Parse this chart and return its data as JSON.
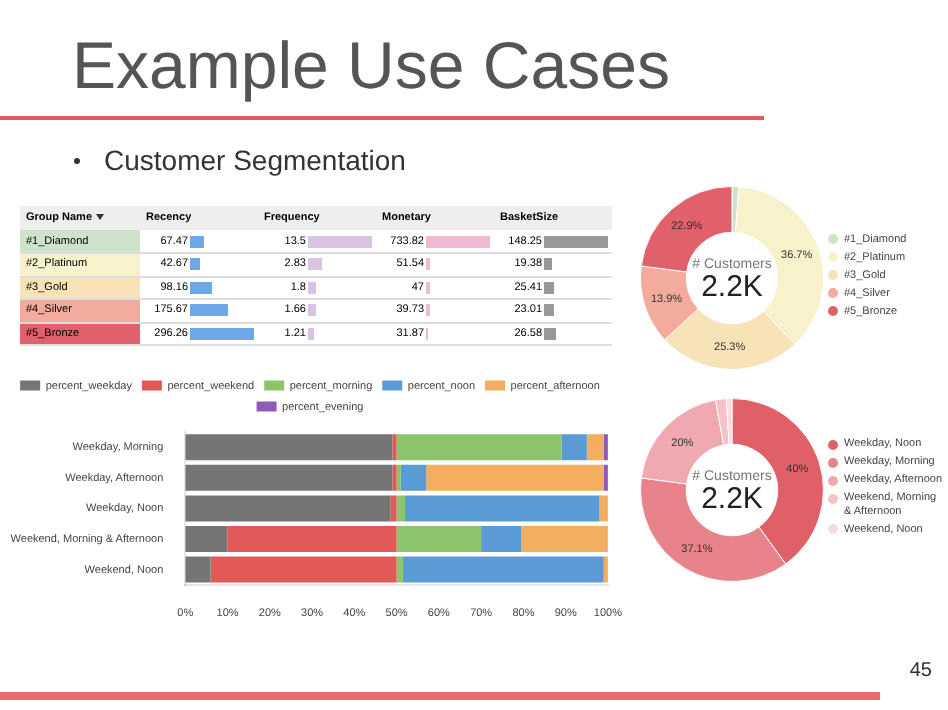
{
  "chart_data": [
    {
      "type": "other",
      "title": "Example Use Cases",
      "subtitle": "Customer Segmentation",
      "ylabel": "Group Name",
      "annotations": [
        "45"
      ],
      "data_labels": true,
      "categories": [
        "#1_Diamond",
        "#2_Platinum",
        "#3_Gold",
        "#4_Silver",
        "#5_Bronze"
      ],
      "colors": [
        "#cfe3cc",
        "#f7f2cc",
        "#f8e3b8",
        "#f2ab9c",
        "#e0606c"
      ],
      "series": [
        {
          "name": "Recency",
          "values": [
            67.47,
            42.67,
            98.16,
            175.67,
            296.26
          ]
        },
        {
          "name": "Frequency",
          "values": [
            13.5,
            2.83,
            1.8,
            1.66,
            1.21
          ]
        },
        {
          "name": "Monetary",
          "values": [
            733.82,
            51.54,
            47,
            39.73,
            31.87
          ]
        },
        {
          "name": "BasketSize",
          "values": [
            148.25,
            19.38,
            25.41,
            23.01,
            26.58
          ]
        }
      ]
    },
    {
      "type": "donut",
      "legend": "right",
      "annotations": [
        "# Customers",
        "2.2K"
      ],
      "categories": [
        "#1_Diamond",
        "#2_Platinum",
        "#3_Gold",
        "#4_Silver",
        "#5_Bronze"
      ],
      "values": [
        1.2,
        36.7,
        25.3,
        13.9,
        22.9
      ],
      "value_labels": [
        null,
        "36.7%",
        "25.3%",
        "13.9%",
        "22.9%"
      ],
      "colors": [
        "#cfe3cc",
        "#f7f2cc",
        "#f8e3b8",
        "#f2ab9c",
        "#e0606c"
      ]
    },
    {
      "type": "bar",
      "orientation": "horizontal",
      "stacked": true,
      "legend": "top",
      "categories": [
        "Weekday, Morning",
        "Weekday, Afternoon",
        "Weekday, Noon",
        "Weekend, Morning & Afternoon",
        "Weekend, Noon"
      ],
      "xlim": [
        0,
        100
      ],
      "xticks": [
        {
          "value": 0,
          "label": "0%"
        },
        {
          "value": 10,
          "label": "10%"
        },
        {
          "value": 20,
          "label": "20%"
        },
        {
          "value": 30,
          "label": "30%"
        },
        {
          "value": 40,
          "label": "40%"
        },
        {
          "value": 50,
          "label": "50%"
        },
        {
          "value": 60,
          "label": "60%"
        },
        {
          "value": 70,
          "label": "70%"
        },
        {
          "value": 80,
          "label": "80%"
        },
        {
          "value": 90,
          "label": "90%"
        },
        {
          "value": 100,
          "label": "100%"
        }
      ],
      "series": [
        {
          "name": "percent_weekday",
          "color": "#757575",
          "values": [
            49,
            49,
            48.5,
            10,
            6
          ]
        },
        {
          "name": "percent_weekend",
          "color": "#e05858",
          "values": [
            1,
            1,
            1.5,
            40,
            44
          ]
        },
        {
          "name": "percent_morning",
          "color": "#8cc46c",
          "values": [
            39,
            1,
            2,
            20,
            1.5
          ]
        },
        {
          "name": "percent_noon",
          "color": "#5b9bd5",
          "values": [
            6,
            6,
            46,
            9.5,
            47.5
          ]
        },
        {
          "name": "percent_afternoon",
          "color": "#f2ad5e",
          "values": [
            4,
            42,
            2,
            20.5,
            1
          ]
        },
        {
          "name": "percent_evening",
          "color": "#8e5bb5",
          "values": [
            1,
            1,
            0,
            0,
            0
          ]
        }
      ]
    },
    {
      "type": "donut",
      "legend": "right",
      "annotations": [
        "# Customers",
        "2.2K"
      ],
      "categories": [
        "Weekday, Noon",
        "Weekday, Morning",
        "Weekday, Afternoon",
        "Weekend, Morning & Afternoon",
        "Weekend, Noon"
      ],
      "values": [
        40,
        37.1,
        20,
        1.9,
        1.0
      ],
      "value_labels": [
        "40%",
        "37.1%",
        "20%",
        null,
        null
      ],
      "colors": [
        "#e06068",
        "#e8838c",
        "#f0a9b0",
        "#f5c2c8",
        "#f9dadd"
      ]
    }
  ]
}
